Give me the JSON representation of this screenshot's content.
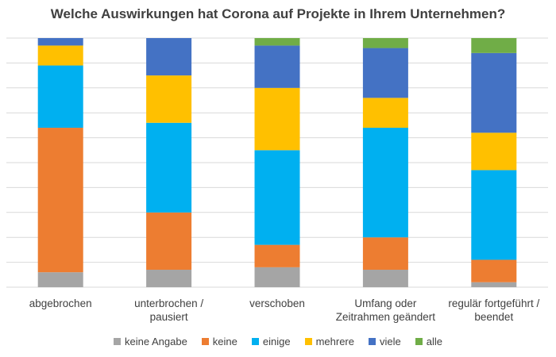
{
  "chart_data": {
    "type": "bar",
    "stacked": true,
    "percent_stacked": true,
    "title": "Welche Auswirkungen hat Corona auf Projekte in Ihrem Unternehmen?",
    "xlabel": "",
    "ylabel": "",
    "ylim": [
      0,
      100
    ],
    "grid": true,
    "legend_position": "bottom",
    "categories": [
      "abgebrochen",
      "unterbrochen /\npausiert",
      "verschoben",
      "Umfang oder\nZeitrahmen geändert",
      "regulär fortgeführt /\nbeendet"
    ],
    "series": [
      {
        "name": "keine Angabe",
        "color": "#A5A5A5",
        "values": [
          6,
          7,
          8,
          7,
          2
        ]
      },
      {
        "name": "keine",
        "color": "#ED7D31",
        "values": [
          58,
          23,
          9,
          13,
          9
        ]
      },
      {
        "name": "einige",
        "color": "#00B0F0",
        "values": [
          25,
          36,
          38,
          44,
          36
        ]
      },
      {
        "name": "mehrere",
        "color": "#FFC000",
        "values": [
          8,
          19,
          25,
          12,
          15
        ]
      },
      {
        "name": "viele",
        "color": "#4472C4",
        "values": [
          3,
          15,
          17,
          20,
          32
        ]
      },
      {
        "name": "alle",
        "color": "#70AD47",
        "values": [
          0,
          0,
          3,
          4,
          6
        ]
      }
    ]
  }
}
